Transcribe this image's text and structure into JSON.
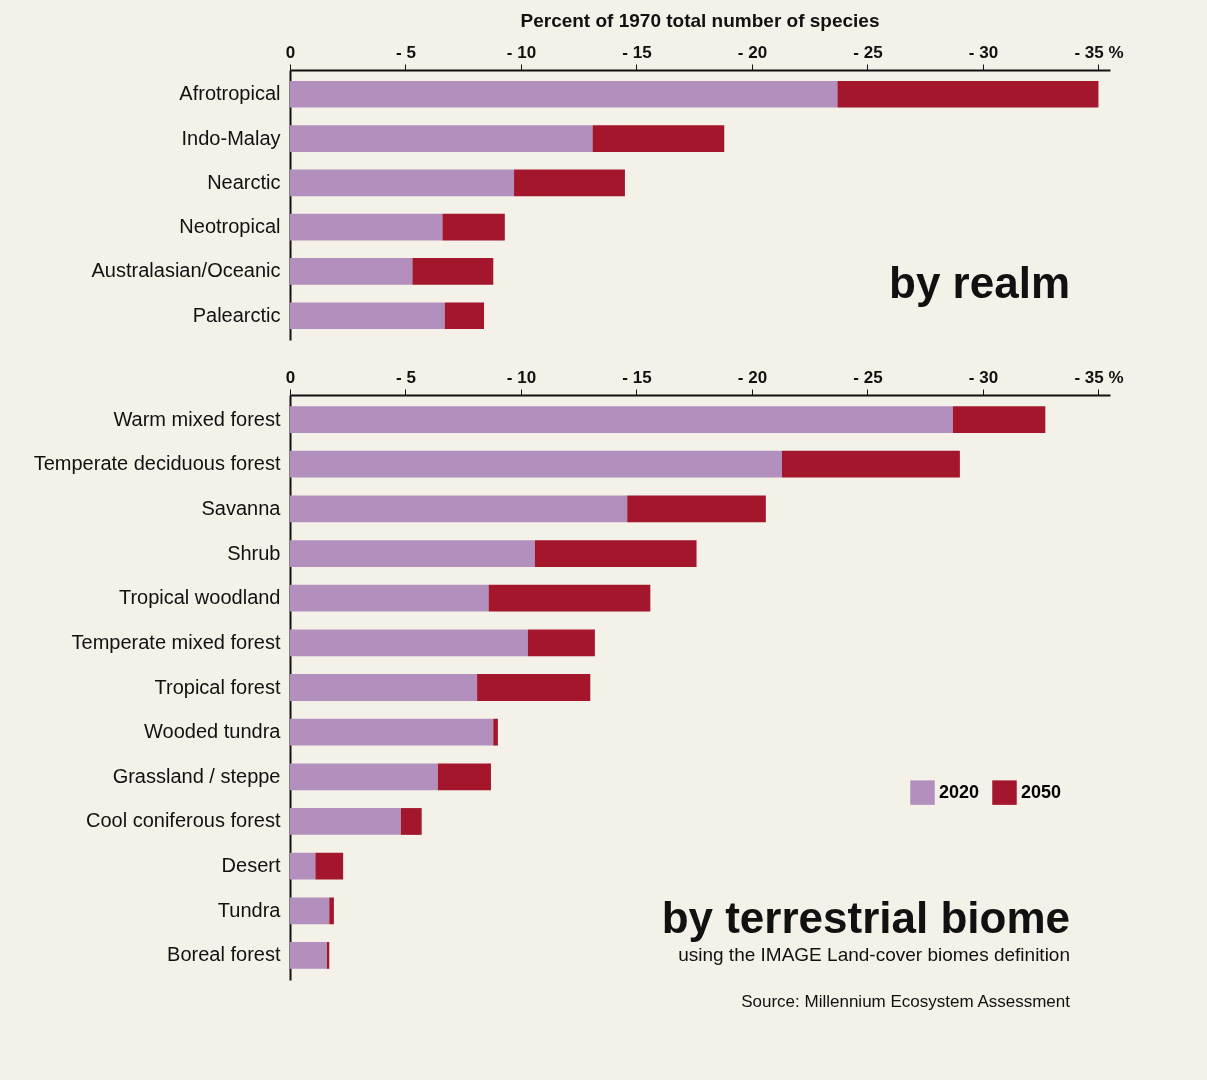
{
  "chart_data": [
    {
      "type": "bar",
      "orientation": "horizontal",
      "stacked": true,
      "title": "Percent of 1970 total number of species",
      "categories": [
        "Afrotropical",
        "Indo-Malay",
        "Nearctic",
        "Neotropical",
        "Australasian/Oceanic",
        "Palearctic"
      ],
      "series": [
        {
          "color": "#b28fbd",
          "values": [
            -23.7,
            -13.1,
            -9.7,
            -6.6,
            -5.3,
            -6.7
          ]
        },
        {
          "color": "#a3162b",
          "values": [
            -11.3,
            -5.7,
            -4.8,
            -2.7,
            -3.5,
            -1.7
          ]
        }
      ],
      "xlim": [
        0,
        -35.5
      ],
      "xticks": [
        0,
        {
          "value": -5,
          "label": "- 5"
        },
        {
          "value": -10,
          "label": "- 10"
        },
        {
          "value": -15,
          "label": "- 15"
        },
        {
          "value": -20,
          "label": "- 20"
        },
        {
          "value": -25,
          "label": "- 25"
        },
        {
          "value": -30,
          "label": "- 30"
        },
        {
          "value": -35,
          "label": "- 35 %"
        }
      ],
      "annotations": [
        "by realm"
      ],
      "legend": false
    },
    {
      "type": "bar",
      "orientation": "horizontal",
      "stacked": true,
      "categories": [
        "Warm mixed forest",
        "Temperate deciduous forest",
        "Savanna",
        "Shrub",
        "Tropical woodland",
        "Temperate mixed forest",
        "Tropical forest",
        "Wooded tundra",
        "Grassland / steppe",
        "Cool coniferous forest",
        "Desert",
        "Tundra",
        "Boreal forest"
      ],
      "series": [
        {
          "name": "2020",
          "color": "#b28fbd",
          "values": [
            -28.7,
            -21.3,
            -14.6,
            -10.6,
            -8.6,
            -10.3,
            -8.1,
            -8.8,
            -6.4,
            -4.8,
            -1.1,
            -1.7,
            -1.6
          ]
        },
        {
          "name": "2050",
          "color": "#a3162b",
          "values": [
            -4.0,
            -7.7,
            -6.0,
            -7.0,
            -7.0,
            -2.9,
            -4.9,
            -0.2,
            -2.3,
            -0.9,
            -1.2,
            -0.2,
            -0.1
          ]
        }
      ],
      "xlim": [
        0,
        -35.5
      ],
      "xticks": [
        0,
        {
          "value": -5,
          "label": "- 5"
        },
        {
          "value": -10,
          "label": "- 10"
        },
        {
          "value": -15,
          "label": "- 15"
        },
        {
          "value": -20,
          "label": "- 20"
        },
        {
          "value": -25,
          "label": "- 25"
        },
        {
          "value": -30,
          "label": "- 30"
        },
        {
          "value": -35,
          "label": "- 35 %"
        }
      ],
      "annotations": [
        "by terrestrial biome",
        "using the IMAGE Land-cover biomes definition",
        "Source: Millennium Ecosystem Assessment"
      ],
      "legend": "right"
    }
  ]
}
